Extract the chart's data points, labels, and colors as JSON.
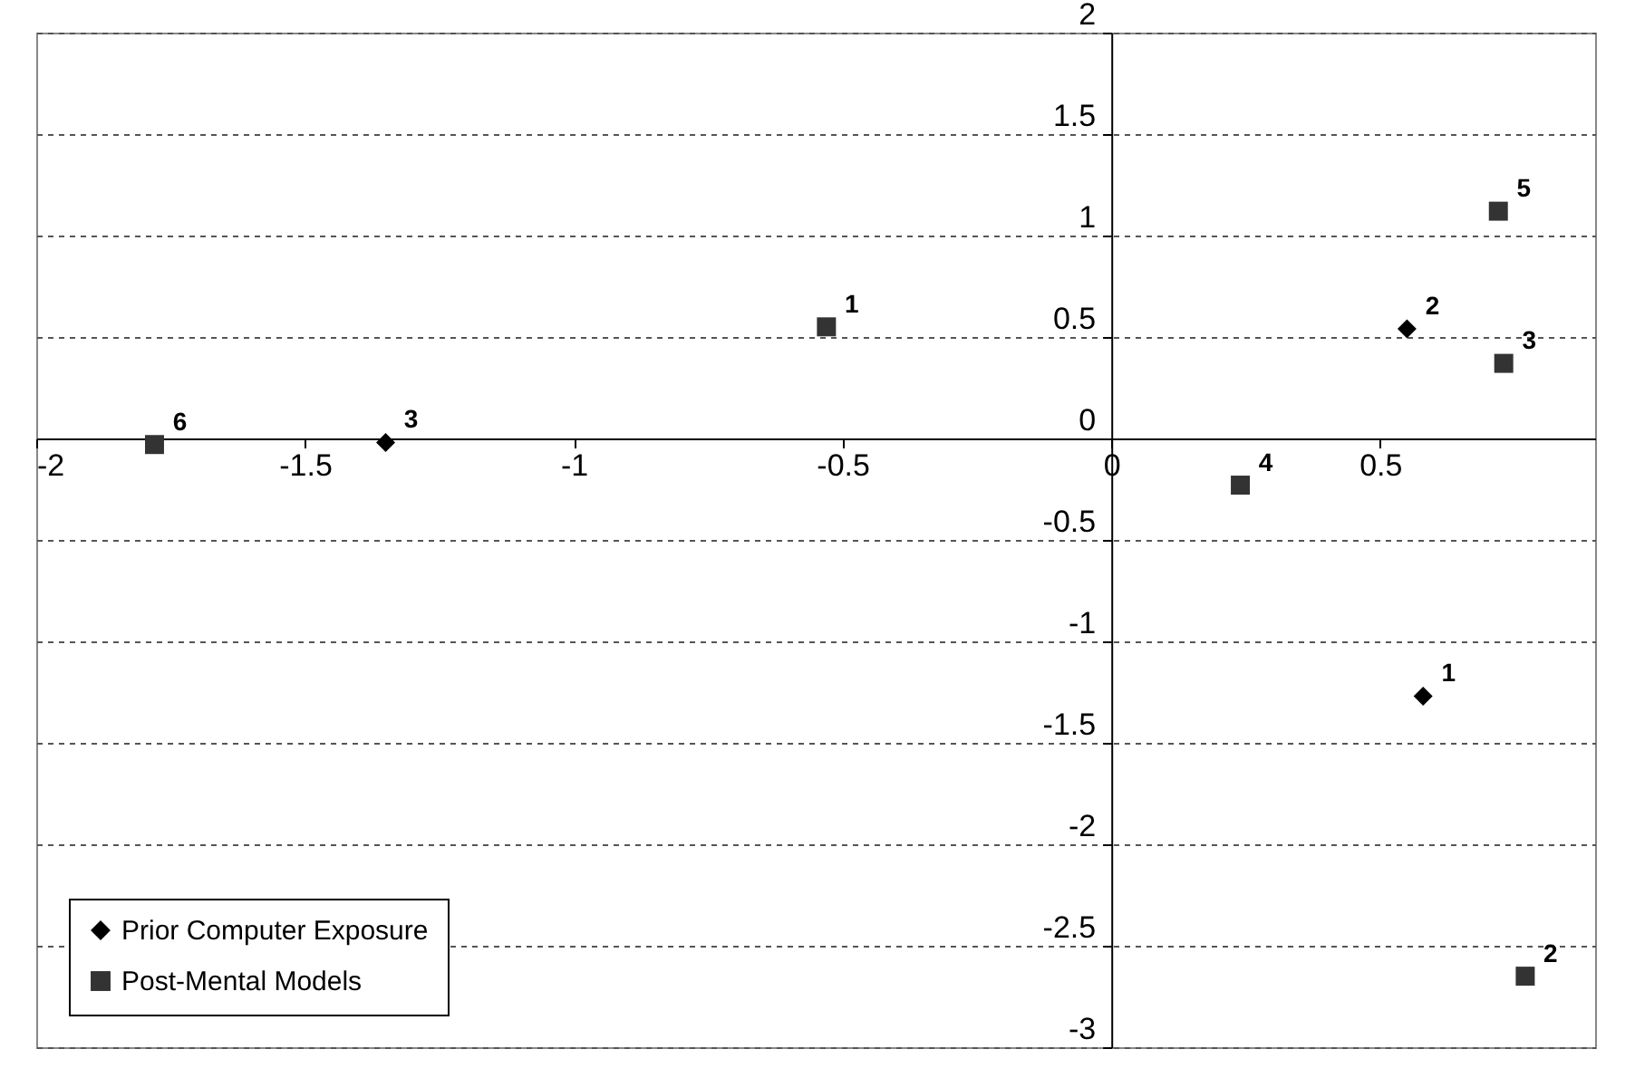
{
  "chart_data": {
    "type": "scatter",
    "xlim": [
      -2,
      0.9
    ],
    "xticks": [
      -2,
      -1.5,
      -1,
      -0.5,
      0,
      0.5
    ],
    "ylim": [
      -3,
      2
    ],
    "yticks": [
      -3,
      -2.5,
      -2,
      -1.5,
      -1,
      -0.5,
      0,
      0.5,
      1,
      1.5,
      2
    ],
    "grid": "y",
    "legend": "bottom left",
    "series": [
      {
        "name": "Prior Computer Exposure",
        "color": "#000000",
        "marker": "diamond",
        "x": [
          -1.35,
          0.55,
          0.58
        ],
        "values": [
          -0.02,
          0.54,
          -1.27
        ]
      },
      {
        "name": "Post-Mental Models",
        "color": "#333333",
        "marker": "square",
        "x": [
          -1.78,
          -0.53,
          0.24,
          0.72,
          0.73,
          0.77
        ],
        "values": [
          -0.03,
          0.55,
          -0.23,
          1.12,
          0.37,
          -2.65
        ]
      }
    ],
    "annotations": [
      {
        "text": "3",
        "x": -1.35,
        "y": -0.02
      },
      {
        "text": "2",
        "x": 0.55,
        "y": 0.54
      },
      {
        "text": "1",
        "x": 0.58,
        "y": -1.27
      },
      {
        "text": "6",
        "x": -1.78,
        "y": -0.03
      },
      {
        "text": "1",
        "x": -0.53,
        "y": 0.55
      },
      {
        "text": "4",
        "x": 0.24,
        "y": -0.23
      },
      {
        "text": "5",
        "x": 0.72,
        "y": 1.12
      },
      {
        "text": "3",
        "x": 0.73,
        "y": 0.37
      },
      {
        "text": "2",
        "x": 0.77,
        "y": -2.65
      }
    ]
  }
}
